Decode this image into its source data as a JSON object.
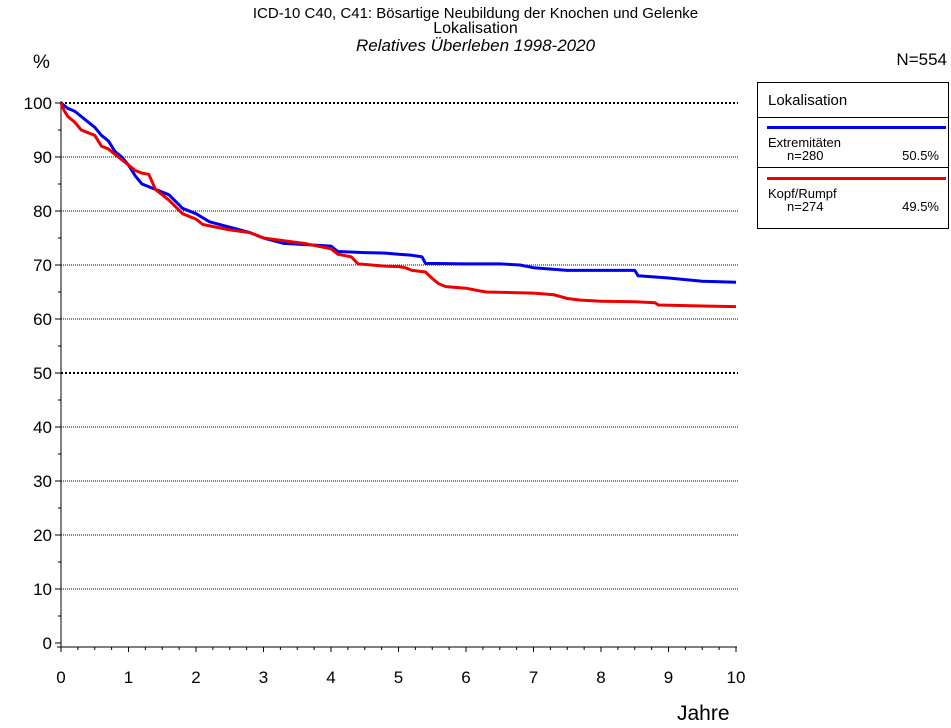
{
  "chart_data": {
    "type": "line",
    "title": "ICD-10 C40, C41: Bösartige Neubildung der Knochen und Gelenke",
    "subtitle": "Lokalisation",
    "subtitle2": "Relatives Überleben 1998-2020",
    "ylabel": "%",
    "xlabel": "Jahre",
    "total_label": "N=554",
    "xlim": [
      0,
      10
    ],
    "ylim": [
      0,
      100
    ],
    "x_ticks": [
      "0",
      "1",
      "2",
      "3",
      "4",
      "5",
      "6",
      "7",
      "8",
      "9",
      "10"
    ],
    "y_ticks": [
      "0",
      "10",
      "20",
      "30",
      "40",
      "50",
      "60",
      "70",
      "80",
      "90",
      "100"
    ],
    "grid": true,
    "legend": {
      "title": "Lokalisation",
      "position": "right",
      "entries": [
        {
          "name": "Extremitäten",
          "n": "n=280",
          "pct": "50.5%",
          "color": "#0000ee"
        },
        {
          "name": "Kopf/Rumpf",
          "n": "n=274",
          "pct": "49.5%",
          "color": "#ee0000"
        }
      ]
    },
    "series": [
      {
        "name": "Extremitäten",
        "color": "#0000ee",
        "x": [
          0,
          0.1,
          0.2,
          0.3,
          0.4,
          0.5,
          0.6,
          0.7,
          0.8,
          0.9,
          1.0,
          1.1,
          1.2,
          1.4,
          1.6,
          1.8,
          2.0,
          2.2,
          2.5,
          2.8,
          3.0,
          3.3,
          3.6,
          4.0,
          4.1,
          4.5,
          4.8,
          5.0,
          5.2,
          5.35,
          5.4,
          6.0,
          6.5,
          6.8,
          7.0,
          7.5,
          8.0,
          8.5,
          8.55,
          9.0,
          9.5,
          10.0
        ],
        "y": [
          100,
          99,
          98.5,
          97.5,
          96.5,
          95.5,
          94,
          93,
          91,
          90,
          88.5,
          86.5,
          85,
          84,
          83,
          80.5,
          79.5,
          78,
          77,
          76,
          75,
          74,
          73.8,
          73.5,
          72.5,
          72.3,
          72.2,
          72,
          71.8,
          71.5,
          70.3,
          70.2,
          70.2,
          70,
          69.5,
          69,
          69,
          69,
          68,
          67.6,
          67,
          66.8
        ]
      },
      {
        "name": "Kopf/Rumpf",
        "color": "#ee0000",
        "x": [
          0,
          0.05,
          0.1,
          0.2,
          0.3,
          0.4,
          0.5,
          0.6,
          0.7,
          0.8,
          0.9,
          1.0,
          1.1,
          1.2,
          1.3,
          1.4,
          1.6,
          1.8,
          2.0,
          2.1,
          2.5,
          2.8,
          3.0,
          3.3,
          3.6,
          4.0,
          4.1,
          4.3,
          4.4,
          4.8,
          5.0,
          5.1,
          5.2,
          5.4,
          5.5,
          5.6,
          5.7,
          6.0,
          6.2,
          6.3,
          7.0,
          7.3,
          7.5,
          7.7,
          8.0,
          8.5,
          8.8,
          8.85,
          9.5,
          10.0
        ],
        "y": [
          100,
          98.5,
          97.5,
          96.5,
          95,
          94.5,
          94,
          92,
          91.5,
          90.5,
          89.5,
          88.5,
          87.5,
          87,
          86.8,
          84,
          82,
          79.5,
          78.5,
          77.5,
          76.5,
          76,
          75,
          74.5,
          74,
          73,
          72,
          71.5,
          70.2,
          69.8,
          69.7,
          69.5,
          69,
          68.7,
          67.5,
          66.5,
          66,
          65.7,
          65.2,
          65,
          64.8,
          64.5,
          63.8,
          63.5,
          63.3,
          63.2,
          63,
          62.6,
          62.4,
          62.3
        ]
      }
    ]
  }
}
